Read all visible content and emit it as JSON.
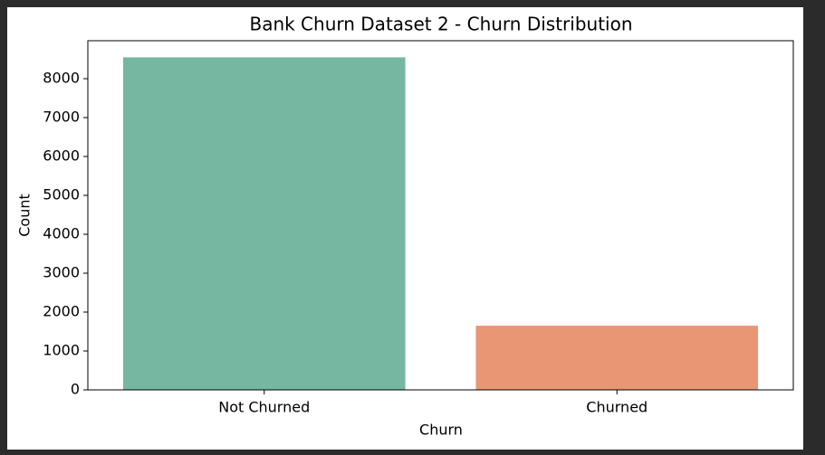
{
  "chart_data": {
    "type": "bar",
    "title": "Bank Churn Dataset 2 - Churn Distribution",
    "xlabel": "Churn",
    "ylabel": "Count",
    "categories": [
      "Not Churned",
      "Churned"
    ],
    "values": [
      8550,
      1650
    ],
    "colors": [
      "#76b7a2",
      "#e99675"
    ],
    "ylim": [
      0,
      8977
    ],
    "yticks": [
      0,
      1000,
      2000,
      3000,
      4000,
      5000,
      6000,
      7000,
      8000
    ],
    "grid": false
  }
}
